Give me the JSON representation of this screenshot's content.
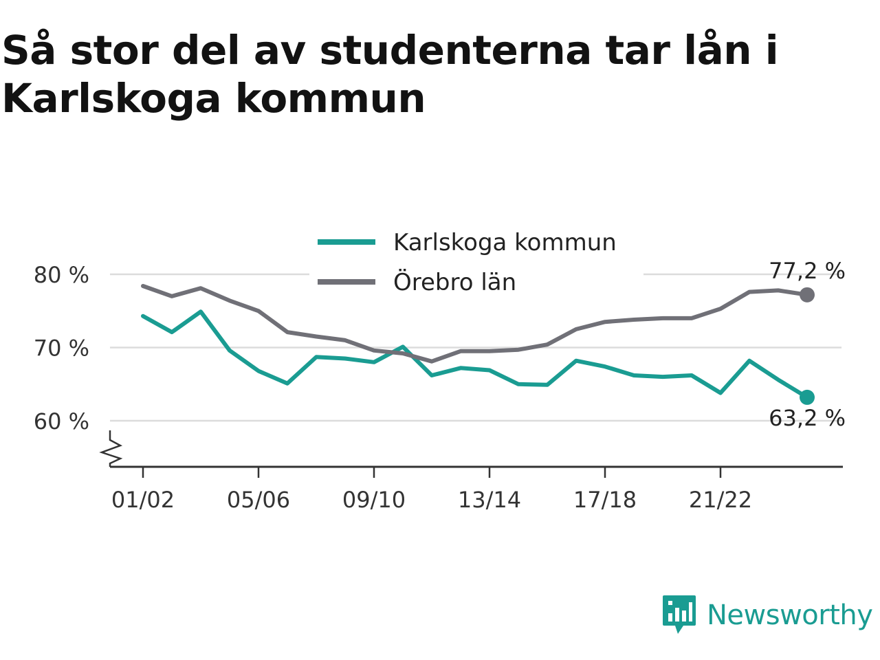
{
  "title": "Så stor del av studenterna tar lån i Karlskoga kommun",
  "brand": {
    "name": "Newsworthy",
    "logo_icon": "newsworthy-logo-icon"
  },
  "colors": {
    "karlskoga": "#1a9c92",
    "orebro": "#707077",
    "grid": "#dcdcdc",
    "axis": "#333333",
    "brand": "#1a9c92"
  },
  "chart_data": {
    "type": "line",
    "title": "Så stor del av studenterna tar lån i Karlskoga kommun",
    "x": [
      "01/02",
      "02/03",
      "03/04",
      "04/05",
      "05/06",
      "06/07",
      "07/08",
      "08/09",
      "09/10",
      "10/11",
      "11/12",
      "12/13",
      "13/14",
      "14/15",
      "15/16",
      "16/17",
      "17/18",
      "18/19",
      "19/20",
      "20/21",
      "21/22",
      "22/23",
      "23/24",
      "24/25"
    ],
    "x_tick_labels": [
      "01/02",
      "05/06",
      "09/10",
      "13/14",
      "17/18",
      "21/22"
    ],
    "y_ticks": [
      60,
      70,
      80
    ],
    "y_tick_labels": [
      "60 %",
      "70 %",
      "80 %"
    ],
    "ylim": [
      54,
      82
    ],
    "axis_break": true,
    "grid": true,
    "legend_position": "top-center",
    "series": [
      {
        "name": "Karlskoga kommun",
        "color": "#1a9c92",
        "values": [
          74.3,
          72.1,
          74.9,
          69.6,
          66.8,
          65.1,
          68.7,
          68.5,
          68.0,
          70.1,
          66.2,
          67.2,
          66.9,
          65.0,
          64.9,
          68.2,
          67.4,
          66.2,
          66.0,
          66.2,
          63.8,
          68.2,
          65.6,
          63.2
        ],
        "end_label": "63,2 %"
      },
      {
        "name": "Örebro län",
        "color": "#707077",
        "values": [
          78.4,
          77.0,
          78.1,
          76.4,
          75.0,
          72.1,
          71.5,
          71.0,
          69.6,
          69.2,
          68.1,
          69.5,
          69.5,
          69.7,
          70.4,
          72.5,
          73.5,
          73.8,
          74.0,
          74.0,
          75.3,
          77.6,
          77.8,
          77.2
        ],
        "end_label": "77,2 %"
      }
    ]
  }
}
